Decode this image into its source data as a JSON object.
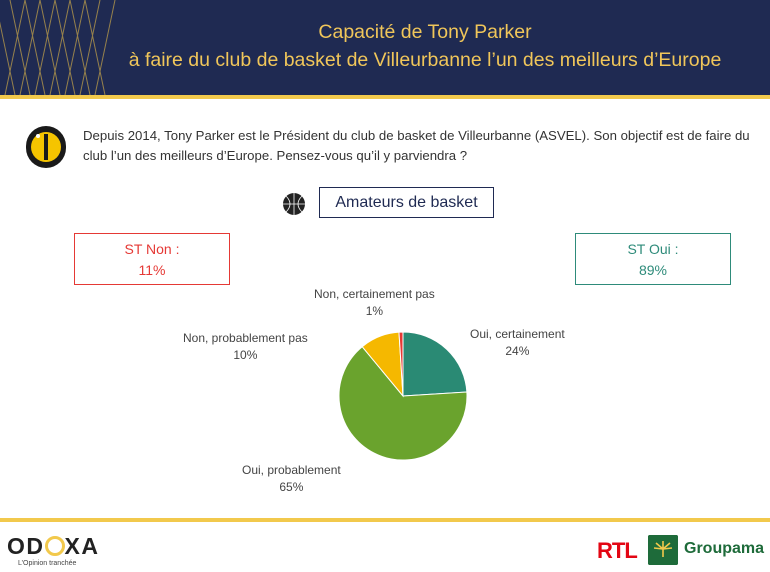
{
  "header": {
    "title_line1": "Capacité de Tony Parker",
    "title_line2": "à faire du club de basket de Villeurbanne l’un des meilleurs d’Europe"
  },
  "question": {
    "text": "Depuis 2014, Tony Parker est le Président du club de basket de Villeurbanne (ASVEL). Son objectif est de faire du club l’un des meilleurs d’Europe. Pensez-vous qu’il y parviendra ?"
  },
  "target": {
    "label": "Amateurs de basket"
  },
  "summary": {
    "st_non_label": "ST Non :",
    "st_non_value": "11%",
    "st_oui_label": "ST Oui :",
    "st_oui_value": "89%",
    "non_color": "#e53935",
    "oui_color": "#2e8b7a"
  },
  "chart_data": {
    "type": "pie",
    "slices": [
      {
        "label": "Oui, certainement",
        "value": 24,
        "display": "24%",
        "color": "#2a8a74"
      },
      {
        "label": "Oui, probablement",
        "value": 65,
        "display": "65%",
        "color": "#6aa32d"
      },
      {
        "label": "Non, probablement pas",
        "value": 10,
        "display": "10%",
        "color": "#f5b800"
      },
      {
        "label": "Non, certainement pas",
        "value": 1,
        "display": "1%",
        "color": "#e53935"
      }
    ]
  },
  "footer": {
    "brand_prefix": "OD",
    "brand_suffix": "XA",
    "tagline": "L’Opinion tranchée",
    "partner1": "RTL",
    "partner2": "Groupama"
  },
  "colors": {
    "navy": "#1f2a52",
    "gold": "#f2c94c"
  }
}
